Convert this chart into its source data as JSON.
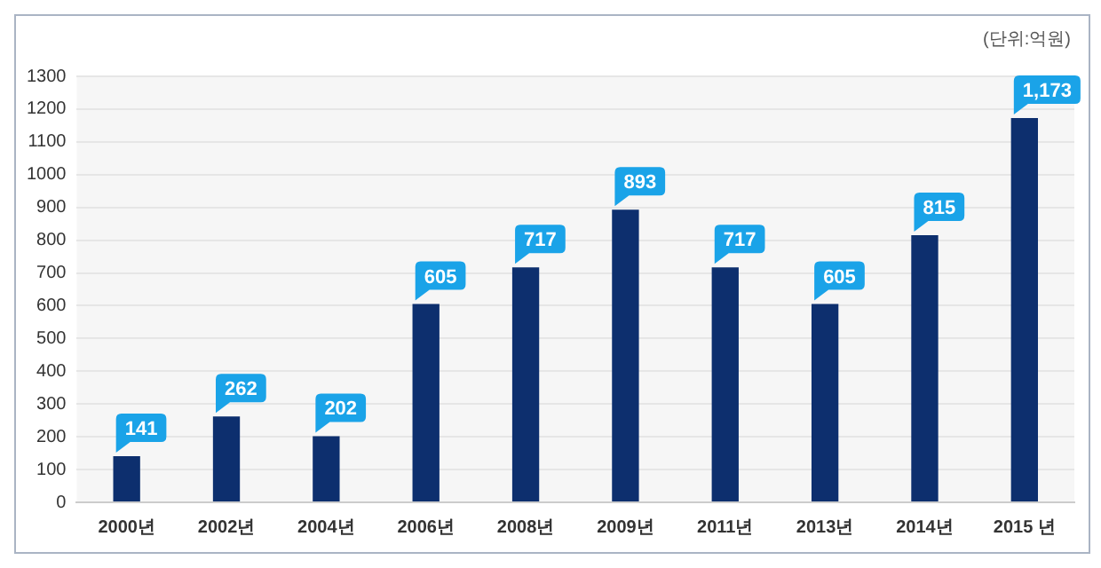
{
  "chart_data": {
    "type": "bar",
    "annotations": [
      "(단위:억원)"
    ],
    "categories": [
      "2000년",
      "2002년",
      "2004년",
      "2006년",
      "2008년",
      "2009년",
      "2011년",
      "2013년",
      "2014년",
      "2015 년"
    ],
    "values": [
      141,
      262,
      202,
      605,
      717,
      893,
      717,
      605,
      815,
      1173
    ],
    "value_labels": [
      "141",
      "262",
      "202",
      "605",
      "717",
      "893",
      "717",
      "605",
      "815",
      "1,173"
    ],
    "color": "#0d2f6e",
    "ylim": [
      0,
      1300
    ],
    "yticks": [
      0,
      100,
      200,
      300,
      400,
      500,
      600,
      700,
      800,
      900,
      1000,
      1100,
      1200,
      1300
    ],
    "grid": "y",
    "legend": false
  }
}
